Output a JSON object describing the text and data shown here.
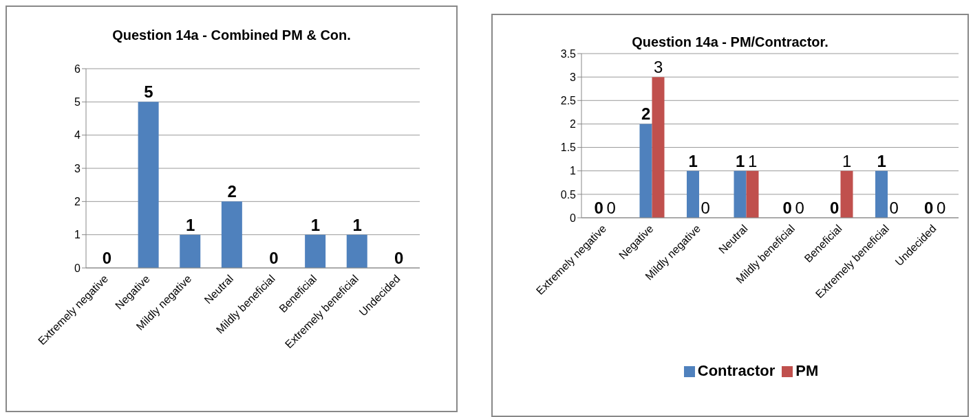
{
  "chart_data": [
    {
      "type": "bar",
      "title": "Question 14a - Combined PM & Con.",
      "categories": [
        "Extremely negative",
        "Negative",
        "Mildly negative",
        "Neutral",
        "Mildly beneficial",
        "Beneficial",
        "Extremely beneficial",
        "Undecided"
      ],
      "values": [
        0,
        5,
        1,
        2,
        0,
        1,
        1,
        0
      ],
      "color": "#4f81bd",
      "ylim": [
        0,
        6
      ],
      "yticks": [
        0,
        1,
        2,
        3,
        4,
        5,
        6
      ],
      "grid": "y",
      "data_labels": true
    },
    {
      "type": "bar",
      "title": "Question 14a - PM/Contractor.",
      "categories": [
        "Extremely negative",
        "Negative",
        "Mildly negative",
        "Neutral",
        "Mildly beneficial",
        "Beneficial",
        "Extremely beneficial",
        "Undecided"
      ],
      "series": [
        {
          "name": "Contractor",
          "color": "#4f81bd",
          "values": [
            0,
            2,
            1,
            1,
            0,
            0,
            1,
            0
          ]
        },
        {
          "name": "PM",
          "color": "#c0504d",
          "values": [
            0,
            3,
            0,
            1,
            0,
            1,
            0,
            0
          ]
        }
      ],
      "ylim": [
        0,
        3.5
      ],
      "yticks": [
        0,
        0.5,
        1,
        1.5,
        2,
        2.5,
        3,
        3.5
      ],
      "grid": "y",
      "legend": "bottom",
      "data_labels": true
    }
  ]
}
